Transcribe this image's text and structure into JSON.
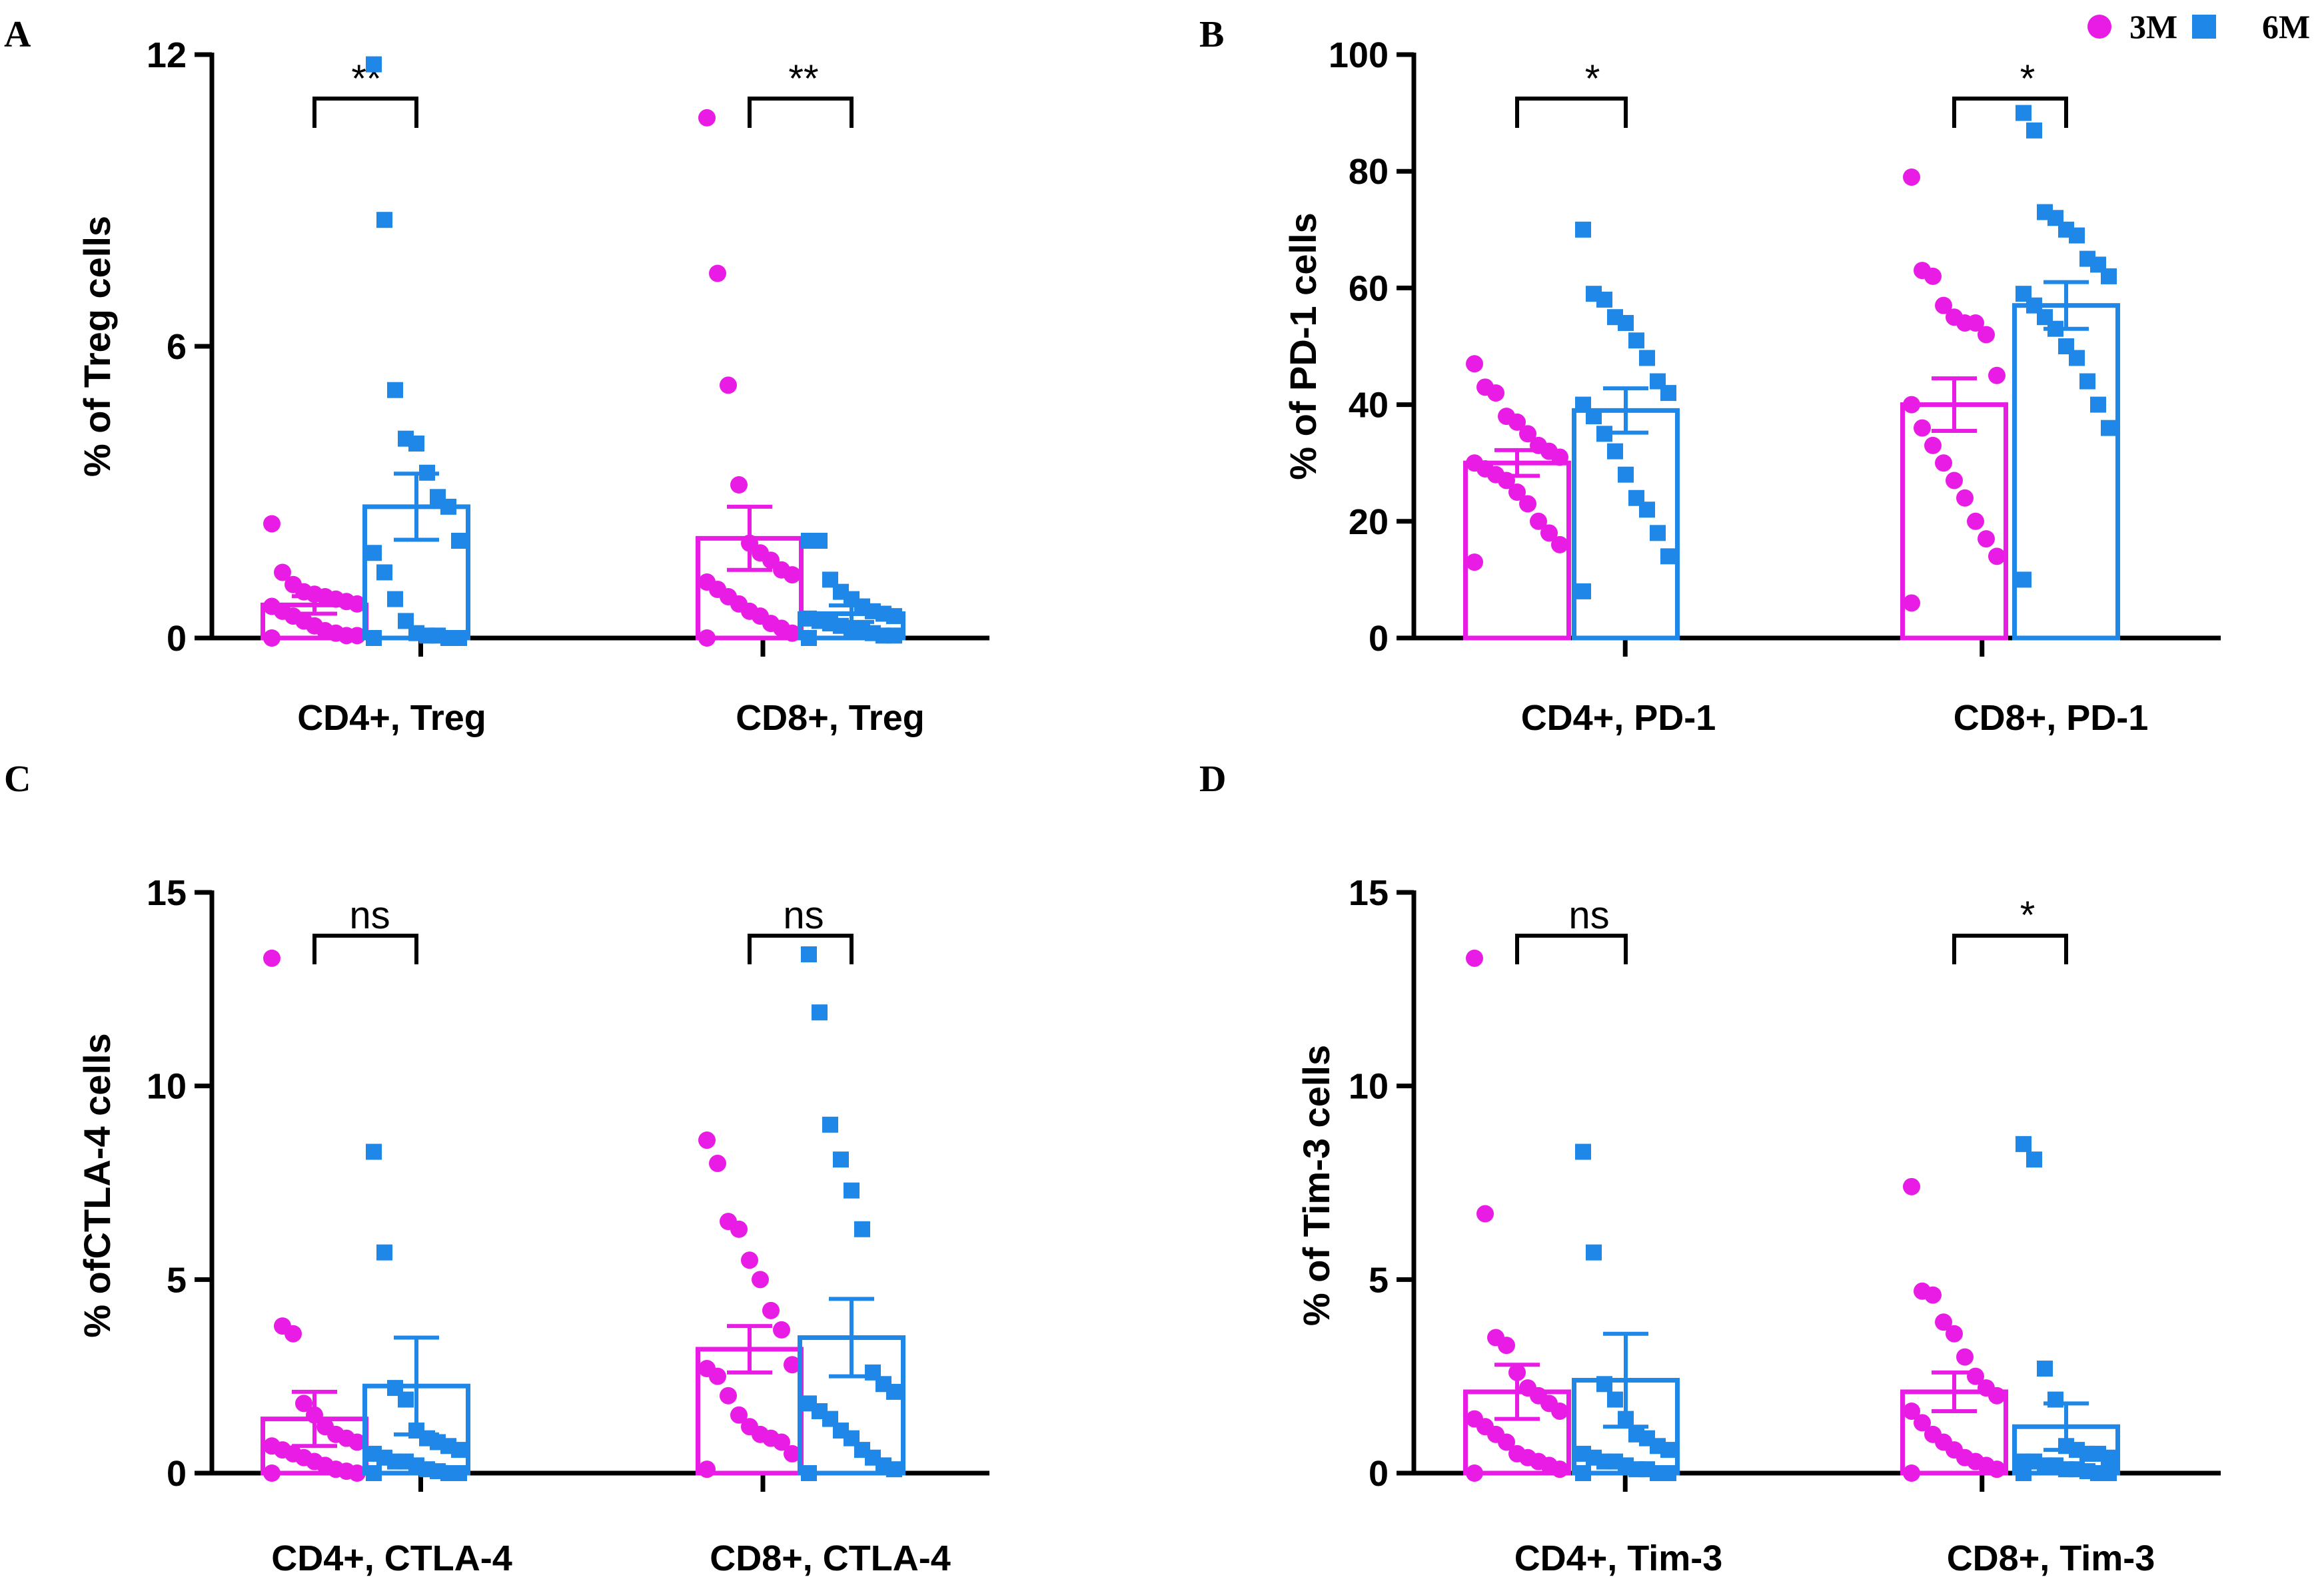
{
  "colors": {
    "3M": "#e81ce5",
    "6M": "#1f87e8",
    "axis": "#000000"
  },
  "legend": [
    {
      "name": "3M",
      "marker": "circle"
    },
    {
      "name": "6M",
      "marker": "square"
    }
  ],
  "chart_data": [
    {
      "panel": "A",
      "type": "bar",
      "ylabel": "% of Treg cells",
      "ylim": [
        0,
        12
      ],
      "yticks": [
        0,
        6,
        12
      ],
      "categories": [
        "CD4+, Treg",
        "CD8+, Treg"
      ],
      "series": [
        {
          "name": "3M",
          "means": [
            0.68,
            2.05
          ],
          "sem": [
            0.18,
            0.65
          ],
          "points": [
            [
              2.35,
              1.35,
              1.1,
              0.95,
              0.9,
              0.85,
              0.8,
              0.75,
              0.7,
              0.65,
              0.55,
              0.45,
              0.35,
              0.25,
              0.15,
              0.1,
              0.05,
              0.05,
              0.0
            ],
            [
              10.7,
              7.5,
              5.2,
              3.15,
              1.95,
              1.75,
              1.6,
              1.4,
              1.3,
              1.15,
              1.0,
              0.85,
              0.7,
              0.55,
              0.45,
              0.3,
              0.2,
              0.1,
              0.0
            ]
          ]
        },
        {
          "name": "6M",
          "means": [
            2.7,
            0.5
          ],
          "sem": [
            0.68,
            0.17
          ],
          "points": [
            [
              11.8,
              8.6,
              5.1,
              4.1,
              4.0,
              3.4,
              2.9,
              2.7,
              2.0,
              1.75,
              1.35,
              0.8,
              0.35,
              0.1,
              0.05,
              0.05,
              0.0,
              0.0,
              0.0
            ],
            [
              2.0,
              2.0,
              1.2,
              0.95,
              0.8,
              0.65,
              0.55,
              0.5,
              0.45,
              0.4,
              0.35,
              0.3,
              0.25,
              0.2,
              0.15,
              0.1,
              0.05,
              0.05,
              0.0
            ]
          ]
        }
      ],
      "significance": [
        "**",
        "**"
      ]
    },
    {
      "panel": "B",
      "type": "bar",
      "ylabel": "% of PD-1 cells",
      "ylim": [
        0,
        100
      ],
      "yticks": [
        0,
        20,
        40,
        60,
        80,
        100
      ],
      "categories": [
        "CD4+, PD-1",
        "CD8+, PD-1"
      ],
      "series": [
        {
          "name": "3M",
          "means": [
            30,
            40
          ],
          "sem": [
            2.2,
            4.5
          ],
          "points": [
            [
              47,
              43,
              42,
              38,
              37,
              35,
              33,
              32,
              31,
              30,
              29,
              28,
              27,
              25,
              23,
              20,
              18,
              16,
              13
            ],
            [
              79,
              63,
              62,
              57,
              55,
              54,
              54,
              52,
              45,
              40,
              36,
              33,
              30,
              27,
              24,
              20,
              17,
              14,
              6
            ]
          ]
        },
        {
          "name": "6M",
          "means": [
            39,
            57
          ],
          "sem": [
            3.8,
            4.0
          ],
          "points": [
            [
              70,
              59,
              58,
              55,
              54,
              51,
              48,
              44,
              42,
              40,
              38,
              35,
              32,
              28,
              24,
              22,
              18,
              14,
              8
            ],
            [
              90,
              87,
              73,
              72,
              70,
              69,
              65,
              64,
              62,
              59,
              57,
              55,
              53,
              50,
              48,
              44,
              40,
              36,
              10
            ]
          ]
        }
      ],
      "significance": [
        "*",
        "*"
      ]
    },
    {
      "panel": "C",
      "type": "bar",
      "ylabel": "% ofCTLA-4 cells",
      "ylim": [
        0,
        15
      ],
      "yticks": [
        0,
        5,
        10,
        15
      ],
      "categories": [
        "CD4+, CTLA-4",
        "CD8+, CTLA-4"
      ],
      "series": [
        {
          "name": "3M",
          "means": [
            1.4,
            3.2
          ],
          "sem": [
            0.7,
            0.6
          ],
          "points": [
            [
              13.3,
              3.8,
              3.6,
              1.8,
              1.5,
              1.2,
              1.0,
              0.9,
              0.8,
              0.7,
              0.6,
              0.5,
              0.4,
              0.3,
              0.2,
              0.1,
              0.05,
              0.0,
              0.0
            ],
            [
              8.6,
              8.0,
              6.5,
              6.3,
              5.5,
              5.0,
              4.2,
              3.7,
              2.8,
              2.7,
              2.5,
              2.0,
              1.5,
              1.2,
              1.0,
              0.9,
              0.8,
              0.5,
              0.1
            ]
          ]
        },
        {
          "name": "6M",
          "means": [
            2.25,
            3.5
          ],
          "sem": [
            1.25,
            1.0
          ],
          "points": [
            [
              8.3,
              5.7,
              2.2,
              1.9,
              1.1,
              0.9,
              0.8,
              0.7,
              0.6,
              0.5,
              0.4,
              0.3,
              0.3,
              0.2,
              0.1,
              0.05,
              0.0,
              0.0,
              0.0
            ],
            [
              13.4,
              11.9,
              9.0,
              8.1,
              7.3,
              6.3,
              2.6,
              2.3,
              2.1,
              1.8,
              1.6,
              1.4,
              1.1,
              0.9,
              0.6,
              0.4,
              0.2,
              0.1,
              0.0
            ]
          ]
        }
      ],
      "significance": [
        "ns",
        "ns"
      ]
    },
    {
      "panel": "D",
      "type": "bar",
      "ylabel": "% of Tim-3 cells",
      "ylim": [
        0,
        15
      ],
      "yticks": [
        0,
        5,
        10,
        15
      ],
      "categories": [
        "CD4+, Tim-3",
        "CD8+, Tim-3"
      ],
      "series": [
        {
          "name": "3M",
          "means": [
            2.1,
            2.1
          ],
          "sem": [
            0.7,
            0.5
          ],
          "points": [
            [
              13.3,
              6.7,
              3.5,
              3.3,
              2.6,
              2.2,
              2.0,
              1.8,
              1.6,
              1.4,
              1.2,
              1.0,
              0.8,
              0.5,
              0.4,
              0.3,
              0.2,
              0.1,
              0.0
            ],
            [
              7.4,
              4.7,
              4.6,
              3.9,
              3.6,
              3.0,
              2.5,
              2.2,
              2.0,
              1.6,
              1.3,
              1.0,
              0.8,
              0.6,
              0.4,
              0.3,
              0.2,
              0.1,
              0.0
            ]
          ]
        },
        {
          "name": "6M",
          "means": [
            2.4,
            1.2
          ],
          "sem": [
            1.2,
            0.6
          ],
          "points": [
            [
              8.3,
              5.7,
              2.3,
              1.9,
              1.4,
              1.0,
              0.9,
              0.7,
              0.6,
              0.5,
              0.4,
              0.3,
              0.3,
              0.2,
              0.1,
              0.1,
              0.0,
              0.0,
              0.0
            ],
            [
              8.5,
              8.1,
              2.7,
              1.9,
              0.7,
              0.6,
              0.5,
              0.5,
              0.4,
              0.3,
              0.3,
              0.2,
              0.2,
              0.1,
              0.1,
              0.05,
              0.0,
              0.0,
              0.0
            ]
          ]
        }
      ],
      "significance": [
        "ns",
        "*"
      ]
    }
  ]
}
